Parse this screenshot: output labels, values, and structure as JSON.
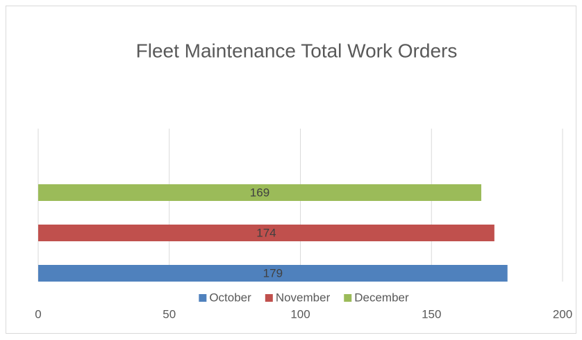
{
  "chart_data": {
    "type": "bar",
    "orientation": "horizontal",
    "title": "Fleet Maintenance Total Work Orders",
    "categories": [
      null
    ],
    "series": [
      {
        "name": "October",
        "color": "#4f81bd",
        "values": [
          179
        ]
      },
      {
        "name": "November",
        "color": "#c0504d",
        "values": [
          174
        ]
      },
      {
        "name": "December",
        "color": "#9bbb59",
        "values": [
          169
        ]
      }
    ],
    "xlim": [
      0,
      200
    ],
    "xticks": [
      0,
      50,
      100,
      150,
      200
    ],
    "grid": true,
    "legend": "bottom",
    "data_labels": true
  }
}
